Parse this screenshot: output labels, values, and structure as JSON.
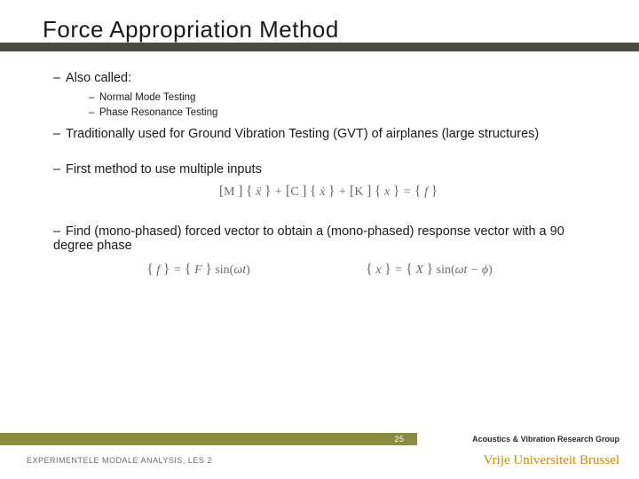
{
  "title": "Force Appropriation Method",
  "bullets": {
    "b1": "Also called:",
    "sub1": "Normal Mode Testing",
    "sub2": "Phase Resonance Testing",
    "b2": "Traditionally used for Ground Vibration Testing (GVT) of airplanes (large structures)",
    "b3": "First method to use multiple inputs",
    "b4": "Find (mono-phased) forced vector to obtain a (mono-phased) response vector with a 90 degree phase"
  },
  "equations": {
    "eq1": "[M ] { ẍ } + [C ] { ẋ } + [K ] { x } = { f }",
    "eq2a": "{ f } = { F } sin(ωt)",
    "eq2b": "{ x } = { X } sin(ωt − ϕ)"
  },
  "footer": {
    "page": "25",
    "group": "Acoustics & Vibration Research Group",
    "course": "EXPERIMENTELE MODALE ANALYSIS, LES 2",
    "university": "Vrije Universiteit Brussel"
  },
  "colors": {
    "title_band": "#4a4a42",
    "olive": "#8a8c3f",
    "uni": "#c98a00",
    "eq_gray": "#6a6a6a",
    "text": "#1a1a1a"
  }
}
